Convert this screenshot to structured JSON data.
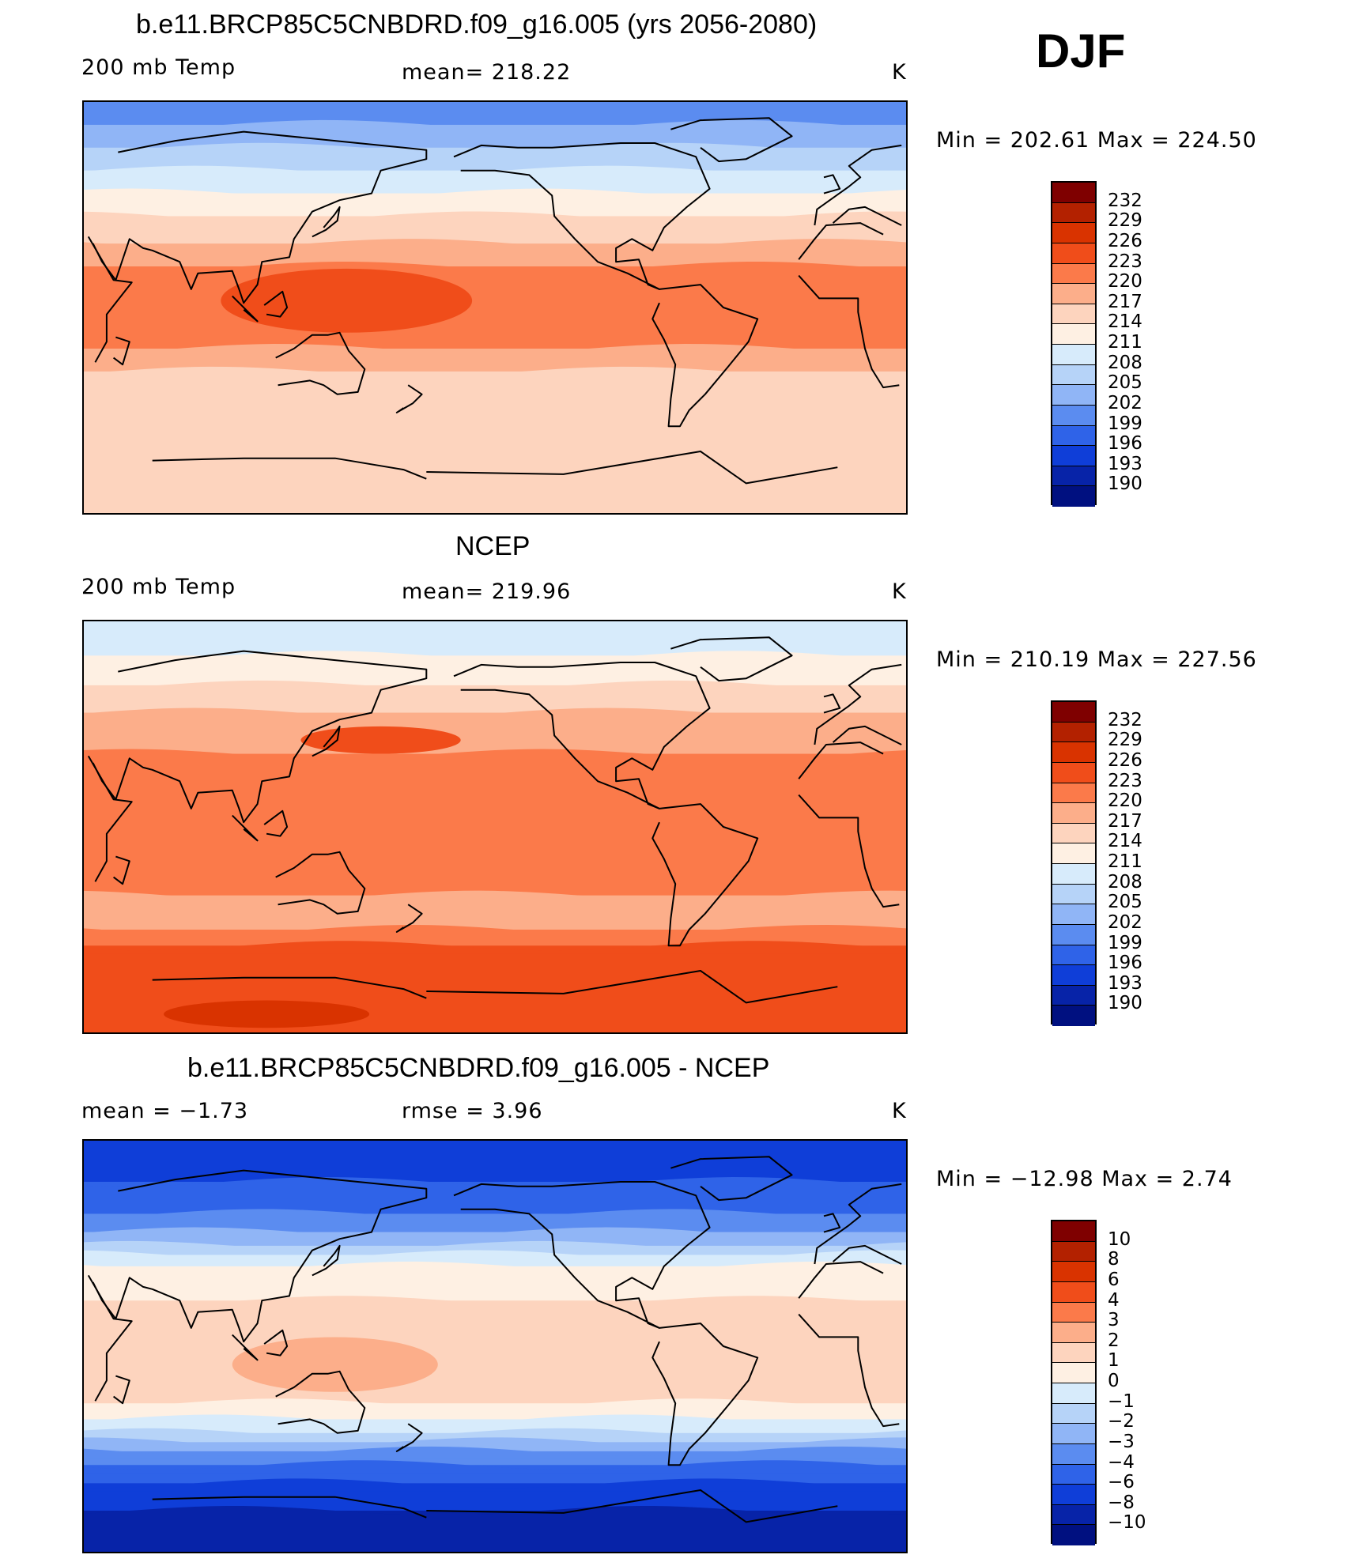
{
  "season": "DJF",
  "panels": [
    {
      "title": "b.e11.BRCP85C5CNBDRD.f09_g16.005 (yrs 2056-2080)",
      "left_label": "200 mb Temp",
      "center_label": "mean=  218.22",
      "units": "K",
      "minmax": "Min  =  202.61  Max  =  224.50",
      "palette": "abs",
      "bands": [
        {
          "lat_max": 90,
          "lat_min": 80,
          "value": 199
        },
        {
          "lat_max": 80,
          "lat_min": 70,
          "value": 202
        },
        {
          "lat_max": 70,
          "lat_min": 60,
          "value": 205
        },
        {
          "lat_max": 60,
          "lat_min": 50,
          "value": 208
        },
        {
          "lat_max": 50,
          "lat_min": 40,
          "value": 211
        },
        {
          "lat_max": 40,
          "lat_min": 28,
          "value": 214
        },
        {
          "lat_max": 28,
          "lat_min": 18,
          "value": 217
        },
        {
          "lat_max": 18,
          "lat_min": -18,
          "value": 220
        },
        {
          "lat_max": -18,
          "lat_min": -28,
          "value": 217
        },
        {
          "lat_max": -28,
          "lat_min": -90,
          "value": 214
        }
      ],
      "blobs": [
        {
          "lon": 145,
          "lat": 3,
          "rlon": 55,
          "rlat": 14,
          "value": 223
        }
      ]
    },
    {
      "title": "NCEP",
      "left_label": "200 mb Temp",
      "center_label": "mean=  219.96",
      "units": "K",
      "minmax": "Min  =  210.19  Max  =  227.56",
      "palette": "abs",
      "bands": [
        {
          "lat_max": 90,
          "lat_min": 75,
          "value": 208
        },
        {
          "lat_max": 75,
          "lat_min": 62,
          "value": 211
        },
        {
          "lat_max": 62,
          "lat_min": 50,
          "value": 214
        },
        {
          "lat_max": 50,
          "lat_min": 32,
          "value": 217
        },
        {
          "lat_max": 32,
          "lat_min": -30,
          "value": 220
        },
        {
          "lat_max": -30,
          "lat_min": -45,
          "value": 217
        },
        {
          "lat_max": -45,
          "lat_min": -52,
          "value": 220
        },
        {
          "lat_max": -52,
          "lat_min": -90,
          "value": 223
        }
      ],
      "blobs": [
        {
          "lon": 160,
          "lat": 38,
          "rlon": 35,
          "rlat": 6,
          "value": 223
        },
        {
          "lon": 110,
          "lat": -82,
          "rlon": 45,
          "rlat": 6,
          "value": 226
        }
      ]
    },
    {
      "title": "b.e11.BRCP85C5CNBDRD.f09_g16.005 - NCEP",
      "left_label": "mean  =    −1.73",
      "center_label": "rmse  =     3.96",
      "units": "K",
      "minmax": "Min  =  −12.98  Max  =     2.74",
      "palette": "diff",
      "bands": [
        {
          "lat_max": 90,
          "lat_min": 72,
          "value": -8
        },
        {
          "lat_max": 72,
          "lat_min": 58,
          "value": -6
        },
        {
          "lat_max": 58,
          "lat_min": 50,
          "value": -4
        },
        {
          "lat_max": 50,
          "lat_min": 44,
          "value": -3
        },
        {
          "lat_max": 44,
          "lat_min": 40,
          "value": -2
        },
        {
          "lat_max": 40,
          "lat_min": 35,
          "value": -1
        },
        {
          "lat_max": 35,
          "lat_min": 20,
          "value": 0
        },
        {
          "lat_max": 20,
          "lat_min": -25,
          "value": 1
        },
        {
          "lat_max": -25,
          "lat_min": -32,
          "value": 0
        },
        {
          "lat_max": -32,
          "lat_min": -38,
          "value": -1
        },
        {
          "lat_max": -38,
          "lat_min": -42,
          "value": -2
        },
        {
          "lat_max": -42,
          "lat_min": -46,
          "value": -3
        },
        {
          "lat_max": -46,
          "lat_min": -52,
          "value": -4
        },
        {
          "lat_max": -52,
          "lat_min": -60,
          "value": -6
        },
        {
          "lat_max": -60,
          "lat_min": -72,
          "value": -8
        },
        {
          "lat_max": -72,
          "lat_min": -90,
          "value": -10
        }
      ],
      "blobs": [
        {
          "lon": 140,
          "lat": -8,
          "rlon": 45,
          "rlat": 12,
          "value": 2
        }
      ]
    }
  ],
  "colorbars": {
    "abs": {
      "labels": [
        "232",
        "229",
        "226",
        "223",
        "220",
        "217",
        "214",
        "211",
        "208",
        "205",
        "202",
        "199",
        "196",
        "193",
        "190"
      ],
      "levels": [
        232,
        229,
        226,
        223,
        220,
        217,
        214,
        211,
        208,
        205,
        202,
        199,
        196,
        193,
        190
      ],
      "colors": [
        "#7f0000",
        "#b32100",
        "#d93300",
        "#f04d1a",
        "#fb7a4a",
        "#fcae8a",
        "#fdd4be",
        "#fef0e3",
        "#d7ebfb",
        "#b6d3f8",
        "#90b5f6",
        "#5b8cf0",
        "#2f63e8",
        "#0f3ed8",
        "#0723a8",
        "#001080"
      ]
    },
    "diff": {
      "labels": [
        "10",
        "8",
        "6",
        "4",
        "3",
        "2",
        "1",
        "0",
        "−1",
        "−2",
        "−3",
        "−4",
        "−6",
        "−8",
        "−10"
      ],
      "levels": [
        10,
        8,
        6,
        4,
        3,
        2,
        1,
        0,
        -1,
        -2,
        -3,
        -4,
        -6,
        -8,
        -10
      ],
      "colors": [
        "#7f0000",
        "#b32100",
        "#d93300",
        "#f04d1a",
        "#fb7a4a",
        "#fcae8a",
        "#fdd4be",
        "#fef0e3",
        "#d7ebfb",
        "#b6d3f8",
        "#90b5f6",
        "#5b8cf0",
        "#2f63e8",
        "#0f3ed8",
        "#0723a8",
        "#001080"
      ]
    }
  }
}
